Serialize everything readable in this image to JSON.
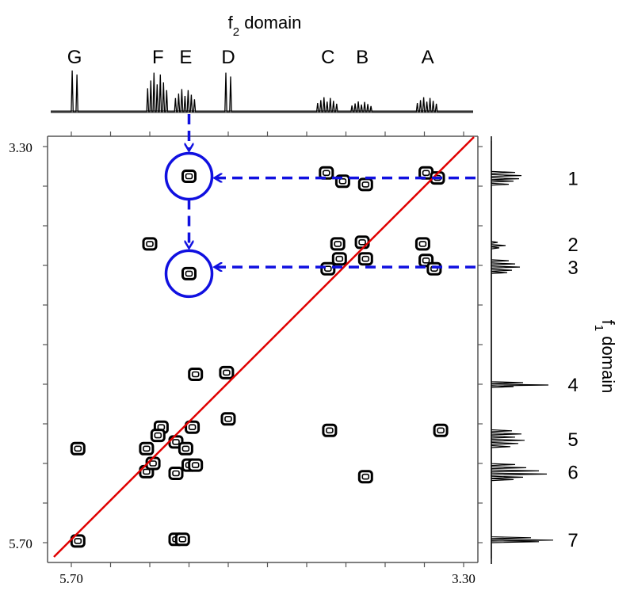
{
  "chart_data": {
    "type": "heatmap",
    "subtype": "2D NMR COSY contour plot",
    "xlabel": "f",
    "xlabel_sub": "2",
    "xlabel_rest": " domain",
    "ylabel": "f",
    "ylabel_sub": "1",
    "ylabel_rest": " domain",
    "x_range": [
      5.7,
      3.3
    ],
    "y_range": [
      3.3,
      5.7
    ],
    "x_tick_labels": [
      "5.70",
      "3.30"
    ],
    "y_tick_labels": [
      "3.30",
      "5.70"
    ],
    "diagonal_color": "#e00000",
    "annotation_color": "#1010e0",
    "f2_peaks": [
      {
        "label": "G",
        "shift": 5.68,
        "shape": "doublet",
        "height": 1.0
      },
      {
        "label": "F",
        "shift": 5.17,
        "shape": "multiplet",
        "height": 0.95
      },
      {
        "label": "E",
        "shift": 5.0,
        "shape": "multiplet",
        "height": 0.55
      },
      {
        "label": "D",
        "shift": 4.74,
        "shape": "doublet",
        "height": 0.95
      },
      {
        "label": "C",
        "shift": 4.13,
        "shape": "multiplet",
        "height": 0.35
      },
      {
        "label": "B",
        "shift": 3.92,
        "shape": "multiplet",
        "height": 0.25
      },
      {
        "label": "A",
        "shift": 3.52,
        "shape": "multiplet",
        "height": 0.35
      }
    ],
    "f1_peaks": [
      {
        "label": "1",
        "shift": 3.49
      },
      {
        "label": "2",
        "shift": 3.89
      },
      {
        "label": "3",
        "shift": 4.03
      },
      {
        "label": "4",
        "shift": 4.74
      },
      {
        "label": "5",
        "shift": 5.07
      },
      {
        "label": "6",
        "shift": 5.27
      },
      {
        "label": "7",
        "shift": 5.68
      }
    ],
    "cross_peaks": [
      {
        "f2": 4.98,
        "f1": 3.48,
        "highlight": true
      },
      {
        "f2": 4.98,
        "f1": 4.07,
        "highlight": true
      },
      {
        "f2": 4.14,
        "f1": 3.46
      },
      {
        "f2": 4.04,
        "f1": 3.51
      },
      {
        "f2": 3.9,
        "f1": 3.53
      },
      {
        "f2": 3.53,
        "f1": 3.46
      },
      {
        "f2": 3.46,
        "f1": 3.49
      },
      {
        "f2": 5.22,
        "f1": 3.89
      },
      {
        "f2": 4.07,
        "f1": 3.89
      },
      {
        "f2": 3.92,
        "f1": 3.88
      },
      {
        "f2": 3.55,
        "f1": 3.89
      },
      {
        "f2": 4.13,
        "f1": 4.04
      },
      {
        "f2": 4.06,
        "f1": 3.98
      },
      {
        "f2": 3.9,
        "f1": 3.98
      },
      {
        "f2": 3.53,
        "f1": 3.99
      },
      {
        "f2": 3.48,
        "f1": 4.04
      },
      {
        "f2": 4.94,
        "f1": 4.68
      },
      {
        "f2": 4.75,
        "f1": 4.67
      },
      {
        "f2": 4.74,
        "f1": 4.95
      },
      {
        "f2": 5.15,
        "f1": 5.0
      },
      {
        "f2": 4.96,
        "f1": 5.0
      },
      {
        "f2": 5.17,
        "f1": 5.05
      },
      {
        "f2": 4.12,
        "f1": 5.02
      },
      {
        "f2": 3.44,
        "f1": 5.02
      },
      {
        "f2": 5.66,
        "f1": 5.13
      },
      {
        "f2": 5.24,
        "f1": 5.13
      },
      {
        "f2": 5.06,
        "f1": 5.09
      },
      {
        "f2": 5.0,
        "f1": 5.13
      },
      {
        "f2": 5.24,
        "f1": 5.27
      },
      {
        "f2": 5.2,
        "f1": 5.22
      },
      {
        "f2": 5.06,
        "f1": 5.28
      },
      {
        "f2": 4.98,
        "f1": 5.23
      },
      {
        "f2": 4.94,
        "f1": 5.23
      },
      {
        "f2": 3.9,
        "f1": 5.3
      },
      {
        "f2": 5.66,
        "f1": 5.69
      },
      {
        "f2": 5.06,
        "f1": 5.68
      },
      {
        "f2": 5.02,
        "f1": 5.68
      }
    ]
  }
}
